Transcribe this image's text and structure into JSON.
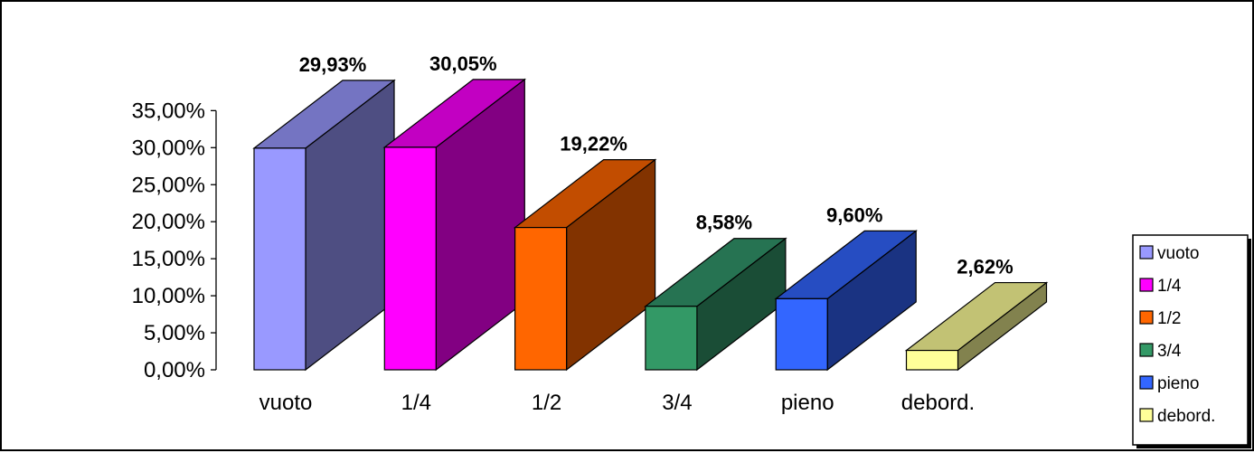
{
  "chart_data": {
    "type": "bar",
    "categories": [
      "vuoto",
      "1/4",
      "1/2",
      "3/4",
      "pieno",
      "debord."
    ],
    "values": [
      29.93,
      30.05,
      19.22,
      8.58,
      9.6,
      2.62
    ],
    "data_labels": [
      "29,93%",
      "30,05%",
      "19,22%",
      "8,58%",
      "9,60%",
      "2,62%"
    ],
    "y_ticks": [
      "0,00%",
      "5,00%",
      "10,00%",
      "15,00%",
      "20,00%",
      "25,00%",
      "30,00%",
      "35,00%"
    ],
    "ylim": [
      0,
      35
    ],
    "title": "",
    "xlabel": "",
    "ylabel": "",
    "three_d": true,
    "grid": false,
    "legend_position": "right",
    "legend": [
      "vuoto",
      "1/4",
      "1/2",
      "3/4",
      "pieno",
      "debord."
    ],
    "colors": {
      "front": [
        "#9999ff",
        "#ff00ff",
        "#ff6600",
        "#339966",
        "#3366ff",
        "#ffff99"
      ],
      "top": [
        "#7474c2",
        "#c200c2",
        "#c24d00",
        "#267352",
        "#264dc2",
        "#c2c274"
      ],
      "side": [
        "#4e4e82",
        "#820082",
        "#823300",
        "#1a4d36",
        "#1a3382",
        "#82824e"
      ]
    }
  }
}
